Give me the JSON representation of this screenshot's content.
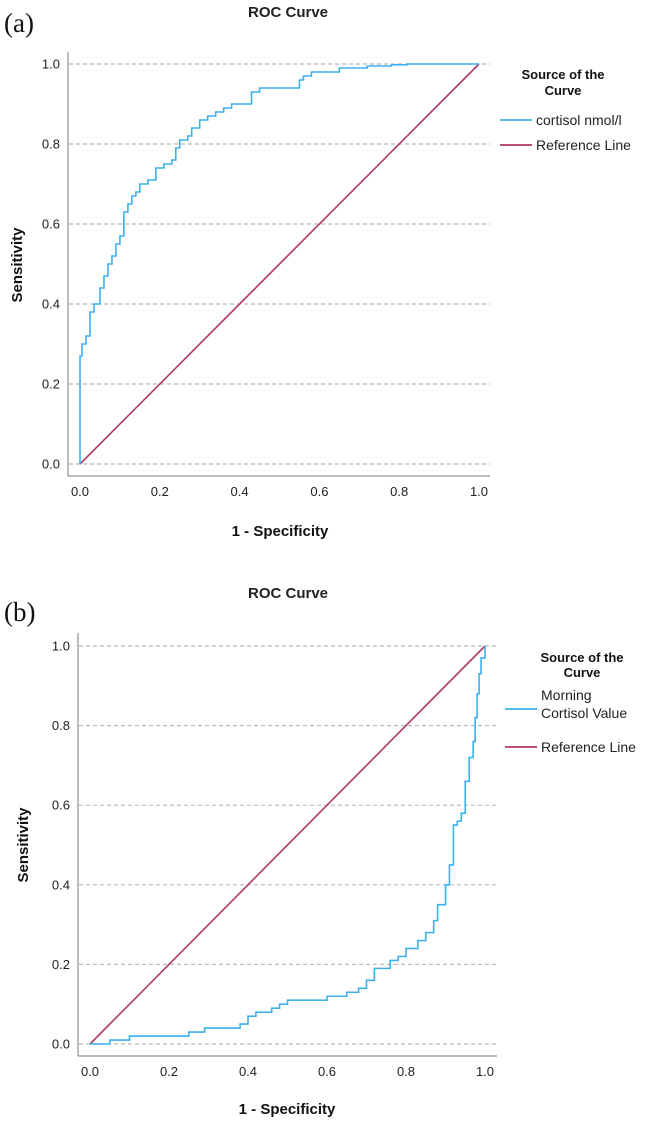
{
  "chart_data": [
    {
      "type": "line",
      "panel_label": "(a)",
      "title": "ROC Curve",
      "xlabel": "1 - Specificity",
      "ylabel": "Sensitivity",
      "xlim": [
        0,
        1
      ],
      "ylim": [
        0,
        1
      ],
      "xticks": [
        "0.0",
        "0.2",
        "0.4",
        "0.6",
        "0.8",
        "1.0"
      ],
      "yticks": [
        "0.0",
        "0.2",
        "0.4",
        "0.6",
        "0.8",
        "1.0"
      ],
      "grid": "horizontal dashed",
      "legend": {
        "title_lines": [
          "Source of the",
          "Curve"
        ],
        "position": "right"
      },
      "series": [
        {
          "name_lines": [
            "cortisol nmol/l"
          ],
          "color": "#3db0ee",
          "x": [
            0,
            0,
            0.005,
            0.005,
            0.015,
            0.015,
            0.025,
            0.025,
            0.035,
            0.035,
            0.05,
            0.05,
            0.06,
            0.06,
            0.07,
            0.07,
            0.08,
            0.08,
            0.09,
            0.09,
            0.1,
            0.1,
            0.11,
            0.11,
            0.12,
            0.12,
            0.13,
            0.13,
            0.14,
            0.14,
            0.15,
            0.15,
            0.17,
            0.17,
            0.19,
            0.19,
            0.21,
            0.21,
            0.23,
            0.23,
            0.24,
            0.24,
            0.25,
            0.25,
            0.27,
            0.27,
            0.28,
            0.28,
            0.3,
            0.3,
            0.32,
            0.32,
            0.34,
            0.34,
            0.36,
            0.36,
            0.38,
            0.38,
            0.4,
            0.4,
            0.43,
            0.43,
            0.45,
            0.45,
            0.55,
            0.55,
            0.56,
            0.56,
            0.58,
            0.58,
            0.65,
            0.65,
            0.72,
            0.72,
            0.78,
            0.78,
            0.82,
            0.82,
            0.86,
            0.86,
            1.0
          ],
          "y": [
            0,
            0.27,
            0.27,
            0.3,
            0.3,
            0.32,
            0.32,
            0.38,
            0.38,
            0.4,
            0.4,
            0.44,
            0.44,
            0.47,
            0.47,
            0.5,
            0.5,
            0.52,
            0.52,
            0.55,
            0.55,
            0.57,
            0.57,
            0.63,
            0.63,
            0.65,
            0.65,
            0.67,
            0.67,
            0.68,
            0.68,
            0.7,
            0.7,
            0.71,
            0.71,
            0.74,
            0.74,
            0.75,
            0.75,
            0.76,
            0.76,
            0.79,
            0.79,
            0.81,
            0.81,
            0.82,
            0.82,
            0.84,
            0.84,
            0.86,
            0.86,
            0.87,
            0.87,
            0.88,
            0.88,
            0.89,
            0.89,
            0.9,
            0.9,
            0.9,
            0.9,
            0.93,
            0.93,
            0.94,
            0.94,
            0.96,
            0.96,
            0.97,
            0.97,
            0.98,
            0.98,
            0.99,
            0.99,
            0.995,
            0.995,
            0.998,
            0.998,
            1.0,
            1.0,
            1.0,
            1.0
          ]
        },
        {
          "name_lines": [
            "Reference Line"
          ],
          "color": "#b0376a",
          "x": [
            0,
            1
          ],
          "y": [
            0,
            1
          ]
        }
      ]
    },
    {
      "type": "line",
      "panel_label": "(b)",
      "title": "ROC Curve",
      "xlabel": "1 - Specificity",
      "ylabel": "Sensitivity",
      "xlim": [
        0,
        1
      ],
      "ylim": [
        0,
        1
      ],
      "xticks": [
        "0.0",
        "0.2",
        "0.4",
        "0.6",
        "0.8",
        "1.0"
      ],
      "yticks": [
        "0.0",
        "0.2",
        "0.4",
        "0.6",
        "0.8",
        "1.0"
      ],
      "grid": "horizontal dashed",
      "legend": {
        "title_lines": [
          "Source of the",
          "Curve"
        ],
        "position": "right"
      },
      "series": [
        {
          "name_lines": [
            "Morning",
            "Cortisol Value"
          ],
          "color": "#3db0ee",
          "x": [
            0,
            0.05,
            0.05,
            0.1,
            0.1,
            0.25,
            0.25,
            0.29,
            0.29,
            0.38,
            0.38,
            0.4,
            0.4,
            0.42,
            0.42,
            0.46,
            0.46,
            0.48,
            0.48,
            0.5,
            0.5,
            0.6,
            0.6,
            0.65,
            0.65,
            0.68,
            0.68,
            0.7,
            0.7,
            0.72,
            0.72,
            0.76,
            0.76,
            0.78,
            0.78,
            0.8,
            0.8,
            0.83,
            0.83,
            0.85,
            0.85,
            0.87,
            0.87,
            0.88,
            0.88,
            0.9,
            0.9,
            0.91,
            0.91,
            0.92,
            0.92,
            0.93,
            0.93,
            0.94,
            0.94,
            0.95,
            0.95,
            0.96,
            0.96,
            0.97,
            0.97,
            0.975,
            0.975,
            0.98,
            0.98,
            0.985,
            0.985,
            0.99,
            0.99,
            1.0,
            1.0
          ],
          "y": [
            0,
            0,
            0.01,
            0.01,
            0.02,
            0.02,
            0.03,
            0.03,
            0.04,
            0.04,
            0.05,
            0.05,
            0.07,
            0.07,
            0.08,
            0.08,
            0.09,
            0.09,
            0.1,
            0.1,
            0.11,
            0.11,
            0.12,
            0.12,
            0.13,
            0.13,
            0.14,
            0.14,
            0.16,
            0.16,
            0.19,
            0.19,
            0.21,
            0.21,
            0.22,
            0.22,
            0.24,
            0.24,
            0.26,
            0.26,
            0.28,
            0.28,
            0.31,
            0.31,
            0.35,
            0.35,
            0.4,
            0.4,
            0.45,
            0.45,
            0.55,
            0.55,
            0.56,
            0.56,
            0.58,
            0.58,
            0.66,
            0.66,
            0.72,
            0.72,
            0.76,
            0.76,
            0.82,
            0.82,
            0.88,
            0.88,
            0.93,
            0.93,
            0.97,
            0.97,
            1.0
          ]
        },
        {
          "name_lines": [
            "Reference Line"
          ],
          "color": "#b0376a",
          "x": [
            0,
            1
          ],
          "y": [
            0,
            1
          ]
        }
      ]
    }
  ]
}
